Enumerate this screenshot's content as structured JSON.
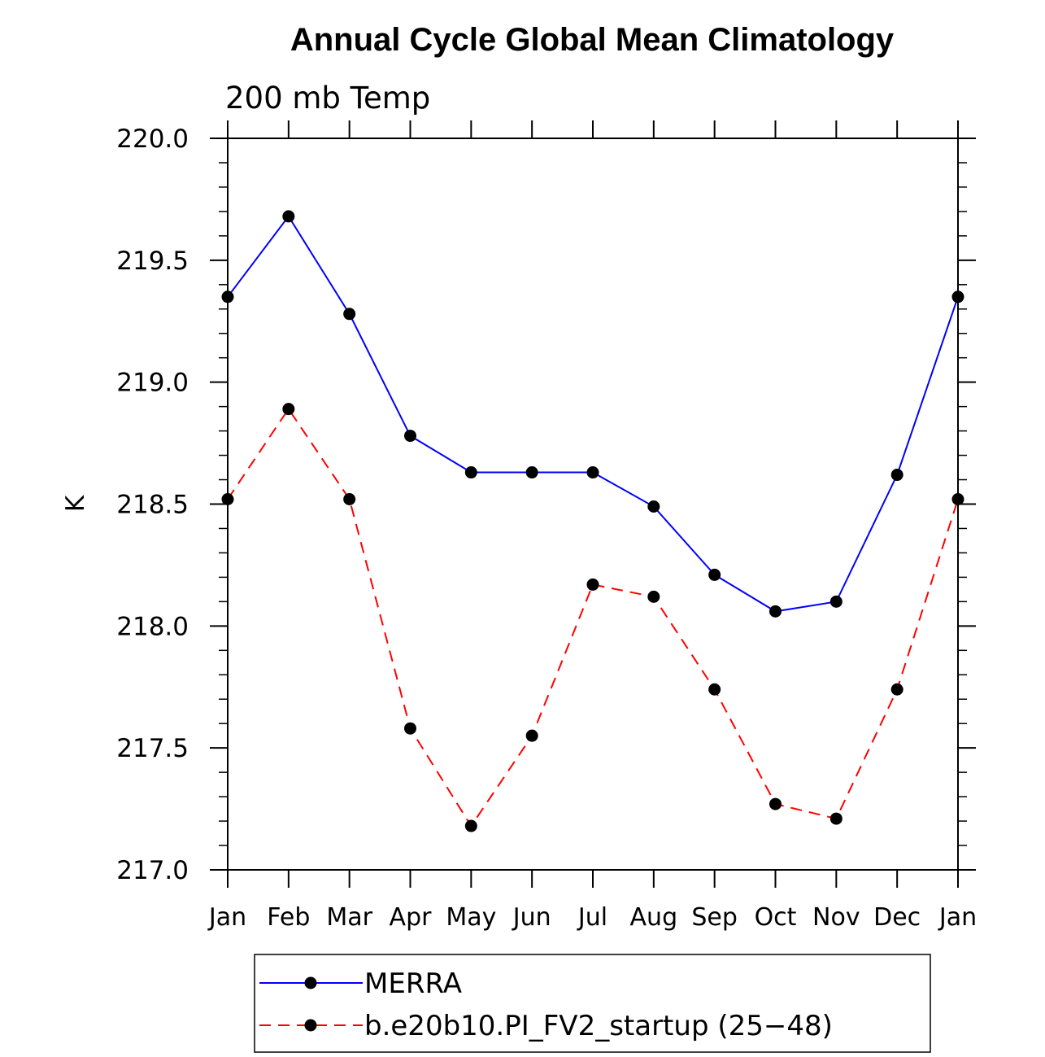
{
  "chart_data": {
    "type": "line",
    "title": "Annual Cycle Global Mean Climatology",
    "subtitle": "200 mb Temp",
    "xlabel": "",
    "ylabel": "K",
    "categories": [
      "Jan",
      "Feb",
      "Mar",
      "Apr",
      "May",
      "Jun",
      "Jul",
      "Aug",
      "Sep",
      "Oct",
      "Nov",
      "Dec",
      "Jan"
    ],
    "ylim": [
      217.0,
      220.0
    ],
    "yticks": [
      217.0,
      217.5,
      218.0,
      218.5,
      219.0,
      219.5,
      220.0
    ],
    "ytick_labels": [
      "217.0",
      "217.5",
      "218.0",
      "218.5",
      "219.0",
      "219.5",
      "220.0"
    ],
    "grid": false,
    "legend_position": "bottom",
    "series": [
      {
        "name": "MERRA",
        "color": "#0000ff",
        "dashed": false,
        "values": [
          219.35,
          219.68,
          219.28,
          218.78,
          218.63,
          218.63,
          218.63,
          218.49,
          218.21,
          218.06,
          218.1,
          218.62,
          219.35
        ]
      },
      {
        "name": "b.e20b10.PI_FV2_startup (25−48)",
        "color": "#ff0000",
        "dashed": true,
        "values": [
          218.52,
          218.89,
          218.52,
          217.58,
          217.18,
          217.55,
          218.17,
          218.12,
          217.74,
          217.27,
          217.21,
          217.74,
          218.52
        ]
      }
    ]
  }
}
